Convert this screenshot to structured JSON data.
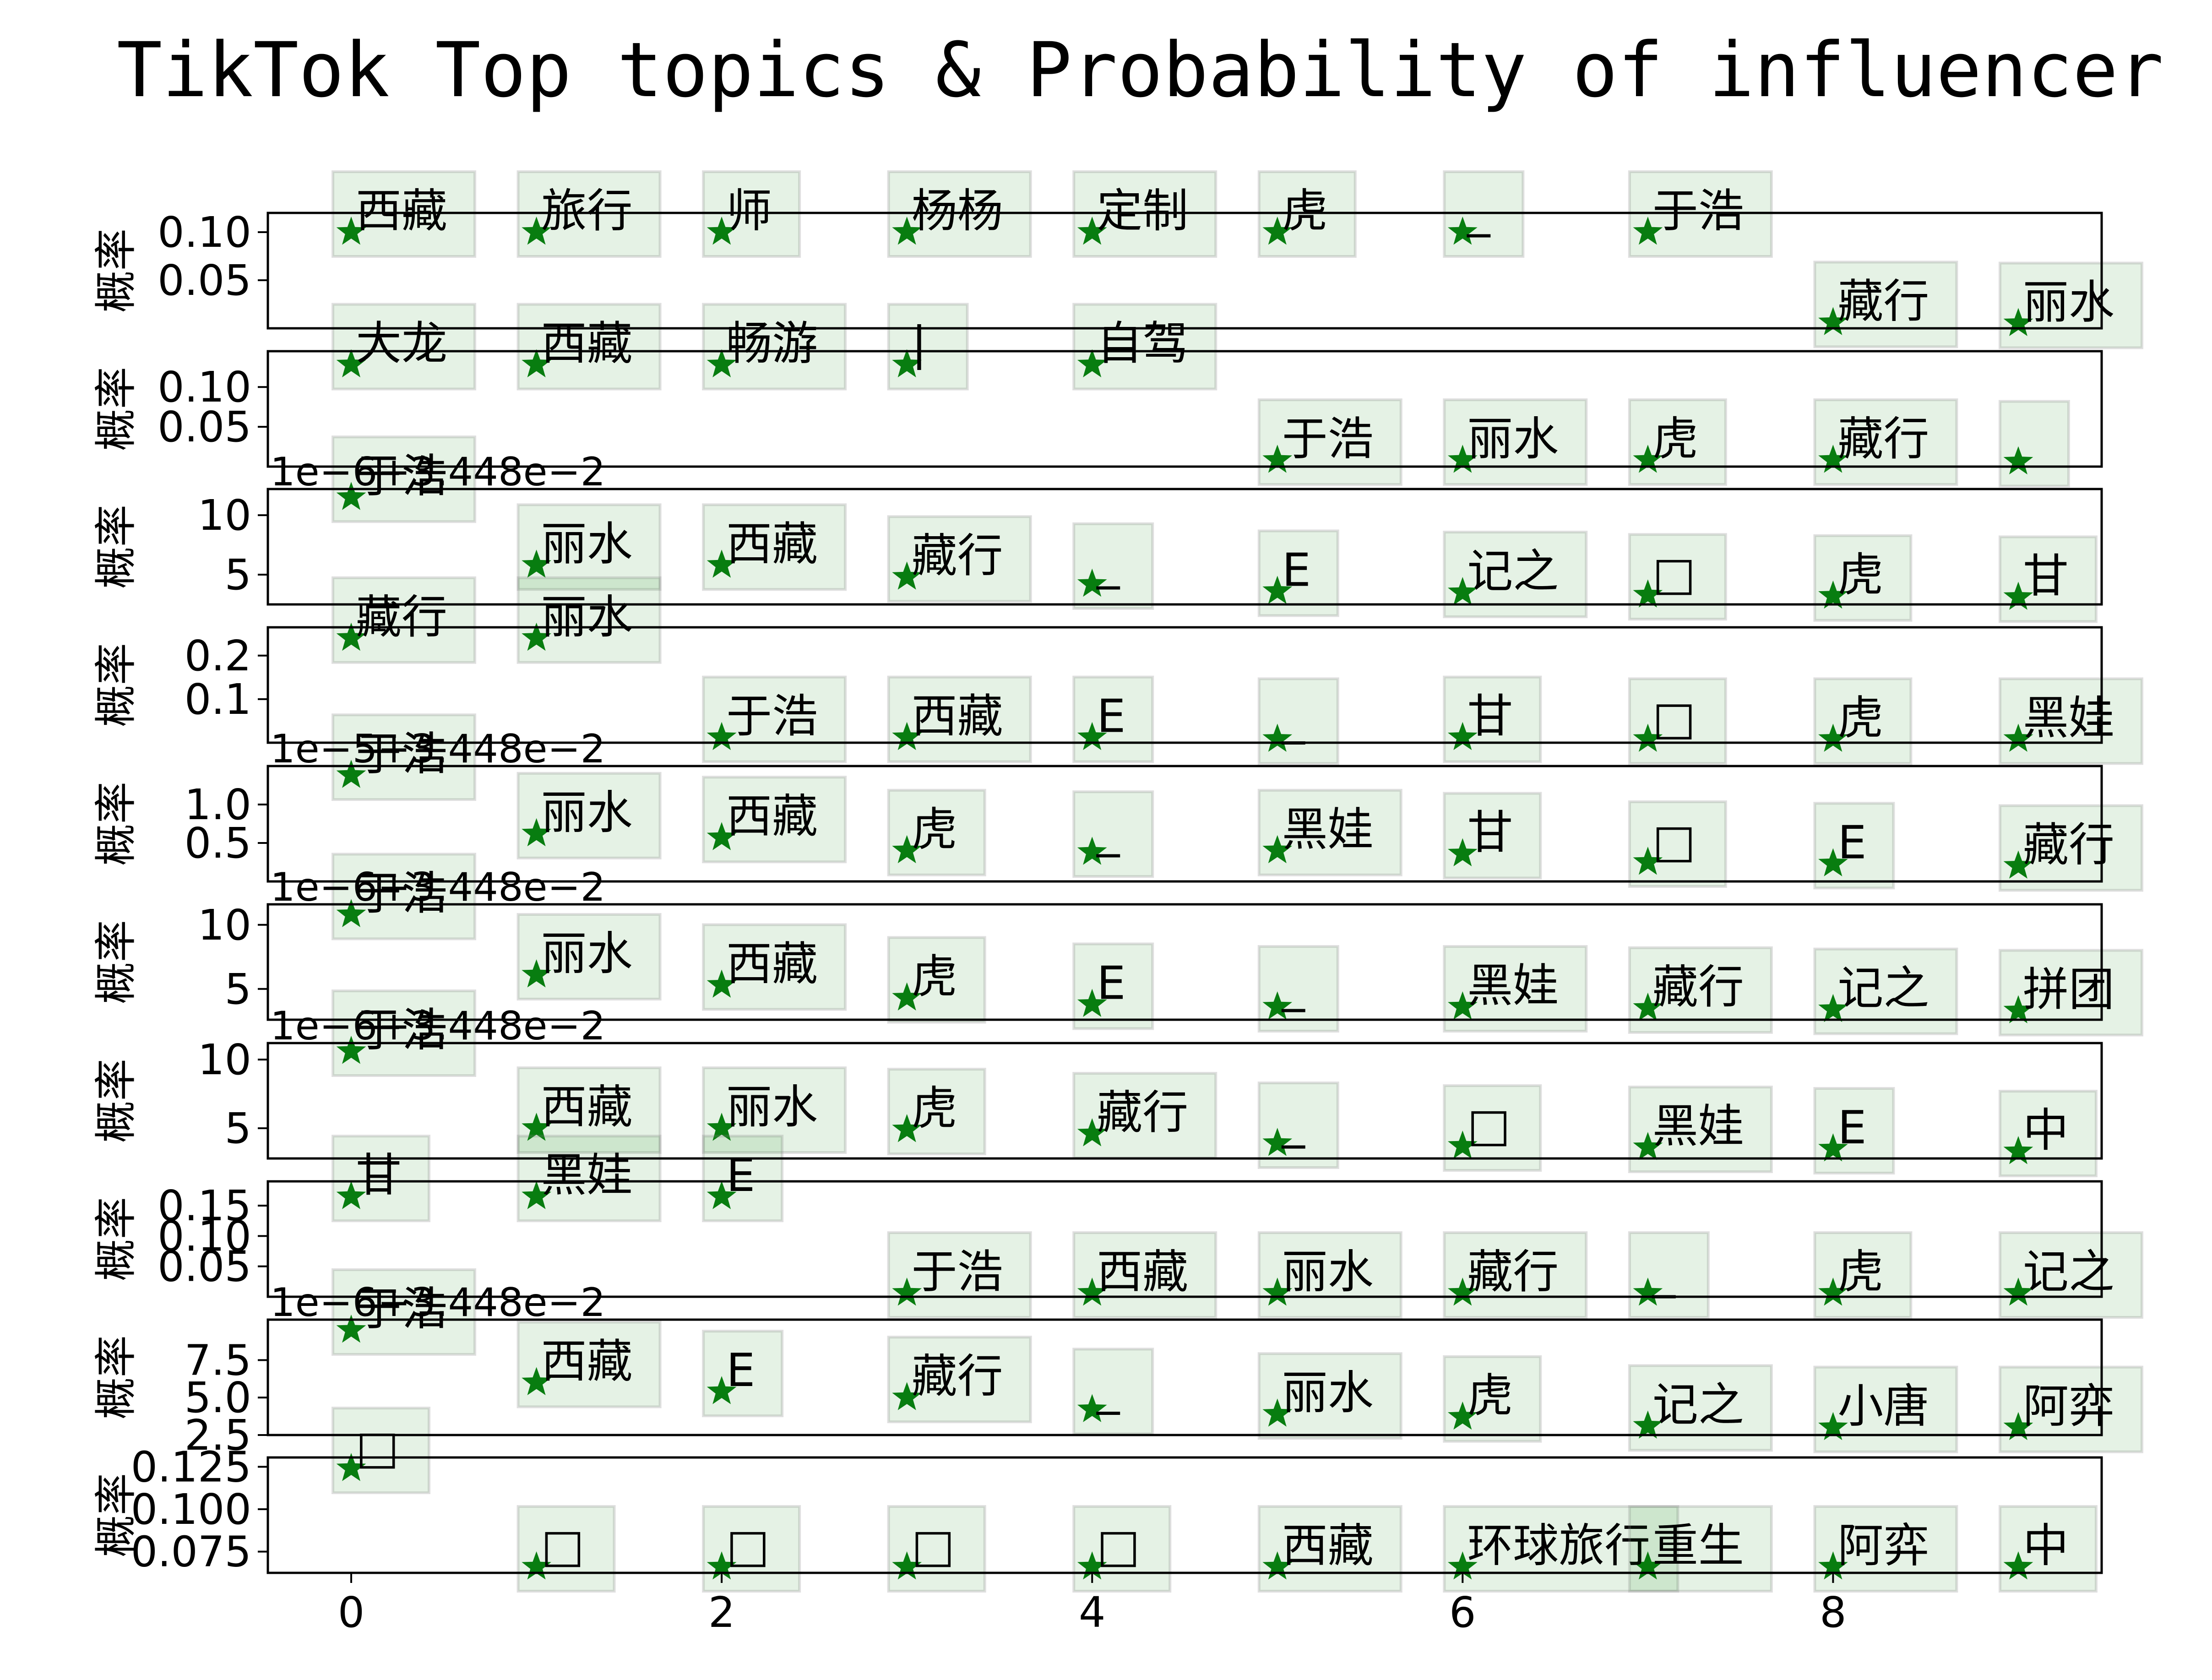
{
  "chart_data": {
    "type": "scatter",
    "title": "TikTok Top topics & Probability of influencer",
    "ylabel": "概率",
    "marker": "star",
    "color": "#0a7d12",
    "xlim": [
      -0.45,
      9.45
    ],
    "x_ticks": [
      "0",
      "2",
      "4",
      "6",
      "8"
    ],
    "x_tick_values": [
      0,
      2,
      4,
      6,
      8
    ],
    "panels": [
      {
        "ylim": [
          0.0,
          0.12
        ],
        "y_ticks": [
          "0.05",
          "0.10"
        ],
        "y_tick_values": [
          0.05,
          0.1
        ],
        "offset_text": "",
        "points": [
          {
            "x": 0,
            "y": 0.1,
            "label": "西藏"
          },
          {
            "x": 1,
            "y": 0.1,
            "label": "旅行"
          },
          {
            "x": 2,
            "y": 0.1,
            "label": "师"
          },
          {
            "x": 3,
            "y": 0.1,
            "label": "杨杨"
          },
          {
            "x": 4,
            "y": 0.1,
            "label": "定制"
          },
          {
            "x": 5,
            "y": 0.1,
            "label": "虎"
          },
          {
            "x": 6,
            "y": 0.1,
            "label": "_"
          },
          {
            "x": 7,
            "y": 0.1,
            "label": "于浩"
          },
          {
            "x": 8,
            "y": 0.006,
            "label": "藏行"
          },
          {
            "x": 9,
            "y": 0.005,
            "label": "丽水"
          }
        ]
      },
      {
        "ylim": [
          0.0,
          0.145
        ],
        "y_ticks": [
          "0.05",
          "0.10"
        ],
        "y_tick_values": [
          0.05,
          0.1
        ],
        "offset_text": "",
        "points": [
          {
            "x": 0,
            "y": 0.128,
            "label": "大龙"
          },
          {
            "x": 1,
            "y": 0.128,
            "label": "西藏"
          },
          {
            "x": 2,
            "y": 0.128,
            "label": "畅游"
          },
          {
            "x": 3,
            "y": 0.128,
            "label": "|"
          },
          {
            "x": 4,
            "y": 0.128,
            "label": "自驾"
          },
          {
            "x": 5,
            "y": 0.008,
            "label": "于浩"
          },
          {
            "x": 6,
            "y": 0.008,
            "label": "丽水"
          },
          {
            "x": 7,
            "y": 0.008,
            "label": "虎"
          },
          {
            "x": 8,
            "y": 0.008,
            "label": "藏行"
          },
          {
            "x": 9,
            "y": 0.006,
            "label": ""
          }
        ]
      },
      {
        "ylim": [
          2.5,
          12.2
        ],
        "y_ticks": [
          "5",
          "10"
        ],
        "y_tick_values": [
          5,
          10
        ],
        "offset_text": "1e−6+3.448e−2",
        "points": [
          {
            "x": 0,
            "y": 11.5,
            "label": "于浩"
          },
          {
            "x": 1,
            "y": 5.8,
            "label": "丽水"
          },
          {
            "x": 2,
            "y": 5.8,
            "label": "西藏"
          },
          {
            "x": 3,
            "y": 4.8,
            "label": "藏行"
          },
          {
            "x": 4,
            "y": 4.2,
            "label": "_"
          },
          {
            "x": 5,
            "y": 3.6,
            "label": "E"
          },
          {
            "x": 6,
            "y": 3.5,
            "label": "记之"
          },
          {
            "x": 7,
            "y": 3.3,
            "label": "□"
          },
          {
            "x": 8,
            "y": 3.2,
            "label": "虎"
          },
          {
            "x": 9,
            "y": 3.1,
            "label": "甘"
          }
        ]
      },
      {
        "ylim": [
          0.0,
          0.265
        ],
        "y_ticks": [
          "0.1",
          "0.2"
        ],
        "y_tick_values": [
          0.1,
          0.2
        ],
        "offset_text": "",
        "points": [
          {
            "x": 0,
            "y": 0.24,
            "label": "藏行"
          },
          {
            "x": 1,
            "y": 0.24,
            "label": "丽水"
          },
          {
            "x": 2,
            "y": 0.012,
            "label": "于浩"
          },
          {
            "x": 3,
            "y": 0.012,
            "label": "西藏"
          },
          {
            "x": 4,
            "y": 0.012,
            "label": "E"
          },
          {
            "x": 5,
            "y": 0.008,
            "label": "_"
          },
          {
            "x": 6,
            "y": 0.012,
            "label": "甘"
          },
          {
            "x": 7,
            "y": 0.008,
            "label": "□"
          },
          {
            "x": 8,
            "y": 0.008,
            "label": "虎"
          },
          {
            "x": 9,
            "y": 0.008,
            "label": "黑娃"
          }
        ]
      },
      {
        "ylim": [
          0.0,
          1.5
        ],
        "y_ticks": [
          "0.5",
          "1.0"
        ],
        "y_tick_values": [
          0.5,
          1.0
        ],
        "offset_text": "1e−5+3.448e−2",
        "points": [
          {
            "x": 0,
            "y": 1.38,
            "label": "于浩"
          },
          {
            "x": 1,
            "y": 0.62,
            "label": "丽水"
          },
          {
            "x": 2,
            "y": 0.57,
            "label": "西藏"
          },
          {
            "x": 3,
            "y": 0.4,
            "label": "虎"
          },
          {
            "x": 4,
            "y": 0.38,
            "label": "_"
          },
          {
            "x": 5,
            "y": 0.4,
            "label": "黑娃"
          },
          {
            "x": 6,
            "y": 0.36,
            "label": "甘"
          },
          {
            "x": 7,
            "y": 0.25,
            "label": "□"
          },
          {
            "x": 8,
            "y": 0.23,
            "label": "E"
          },
          {
            "x": 9,
            "y": 0.2,
            "label": "藏行"
          }
        ]
      },
      {
        "ylim": [
          2.6,
          11.6
        ],
        "y_ticks": [
          "5",
          "10"
        ],
        "y_tick_values": [
          5,
          10
        ],
        "offset_text": "1e−6+3.448e−2",
        "points": [
          {
            "x": 0,
            "y": 10.8,
            "label": "于浩"
          },
          {
            "x": 1,
            "y": 6.1,
            "label": "丽水"
          },
          {
            "x": 2,
            "y": 5.3,
            "label": "西藏"
          },
          {
            "x": 3,
            "y": 4.3,
            "label": "虎"
          },
          {
            "x": 4,
            "y": 3.8,
            "label": "E"
          },
          {
            "x": 5,
            "y": 3.6,
            "label": "_"
          },
          {
            "x": 6,
            "y": 3.6,
            "label": "黑娃"
          },
          {
            "x": 7,
            "y": 3.5,
            "label": "藏行"
          },
          {
            "x": 8,
            "y": 3.4,
            "label": "记之"
          },
          {
            "x": 9,
            "y": 3.3,
            "label": "拼团"
          }
        ]
      },
      {
        "ylim": [
          2.8,
          11.2
        ],
        "y_ticks": [
          "5",
          "10"
        ],
        "y_tick_values": [
          5,
          10
        ],
        "offset_text": "1e−6+3.448e−2",
        "points": [
          {
            "x": 0,
            "y": 10.6,
            "label": "于浩"
          },
          {
            "x": 1,
            "y": 5.0,
            "label": "西藏"
          },
          {
            "x": 2,
            "y": 5.0,
            "label": "丽水"
          },
          {
            "x": 3,
            "y": 4.9,
            "label": "虎"
          },
          {
            "x": 4,
            "y": 4.6,
            "label": "藏行"
          },
          {
            "x": 5,
            "y": 3.9,
            "label": "_"
          },
          {
            "x": 6,
            "y": 3.7,
            "label": "□"
          },
          {
            "x": 7,
            "y": 3.6,
            "label": "黑娃"
          },
          {
            "x": 8,
            "y": 3.5,
            "label": "E"
          },
          {
            "x": 9,
            "y": 3.3,
            "label": "中"
          }
        ]
      },
      {
        "ylim": [
          0.0,
          0.19
        ],
        "y_ticks": [
          "0.05",
          "0.10",
          "0.15"
        ],
        "y_tick_values": [
          0.05,
          0.1,
          0.15
        ],
        "offset_text": "",
        "points": [
          {
            "x": 0,
            "y": 0.165,
            "label": "甘"
          },
          {
            "x": 1,
            "y": 0.165,
            "label": "黑娃"
          },
          {
            "x": 2,
            "y": 0.165,
            "label": "E"
          },
          {
            "x": 3,
            "y": 0.006,
            "label": "于浩"
          },
          {
            "x": 4,
            "y": 0.006,
            "label": "西藏"
          },
          {
            "x": 5,
            "y": 0.006,
            "label": "丽水"
          },
          {
            "x": 6,
            "y": 0.006,
            "label": "藏行"
          },
          {
            "x": 7,
            "y": 0.006,
            "label": "_"
          },
          {
            "x": 8,
            "y": 0.006,
            "label": "虎"
          },
          {
            "x": 9,
            "y": 0.006,
            "label": "记之"
          }
        ]
      },
      {
        "ylim": [
          2.5,
          10.2
        ],
        "y_ticks": [
          "2.5",
          "5.0",
          "7.5"
        ],
        "y_tick_values": [
          2.5,
          5.0,
          7.5
        ],
        "offset_text": "1e−6+3.448e−2",
        "points": [
          {
            "x": 0,
            "y": 9.5,
            "label": "于浩"
          },
          {
            "x": 1,
            "y": 6.0,
            "label": "西藏"
          },
          {
            "x": 2,
            "y": 5.4,
            "label": "E"
          },
          {
            "x": 3,
            "y": 5.0,
            "label": "藏行"
          },
          {
            "x": 4,
            "y": 4.2,
            "label": "_"
          },
          {
            "x": 5,
            "y": 3.9,
            "label": "丽水"
          },
          {
            "x": 6,
            "y": 3.7,
            "label": "虎"
          },
          {
            "x": 7,
            "y": 3.1,
            "label": "记之"
          },
          {
            "x": 8,
            "y": 3.0,
            "label": "小唐"
          },
          {
            "x": 9,
            "y": 3.0,
            "label": "阿弈"
          }
        ]
      },
      {
        "ylim": [
          0.0625,
          0.1305
        ],
        "y_ticks": [
          "0.075",
          "0.100",
          "0.125"
        ],
        "y_tick_values": [
          0.075,
          0.1,
          0.125
        ],
        "offset_text": "",
        "points": [
          {
            "x": 0,
            "y": 0.124,
            "label": "□"
          },
          {
            "x": 1,
            "y": 0.066,
            "label": "□"
          },
          {
            "x": 2,
            "y": 0.066,
            "label": "□"
          },
          {
            "x": 3,
            "y": 0.066,
            "label": "□"
          },
          {
            "x": 4,
            "y": 0.066,
            "label": "□"
          },
          {
            "x": 5,
            "y": 0.066,
            "label": "西藏"
          },
          {
            "x": 6,
            "y": 0.066,
            "label": "环球旅行"
          },
          {
            "x": 7,
            "y": 0.066,
            "label": "重生"
          },
          {
            "x": 8,
            "y": 0.066,
            "label": "阿弈"
          },
          {
            "x": 9,
            "y": 0.066,
            "label": "中"
          }
        ]
      }
    ]
  }
}
